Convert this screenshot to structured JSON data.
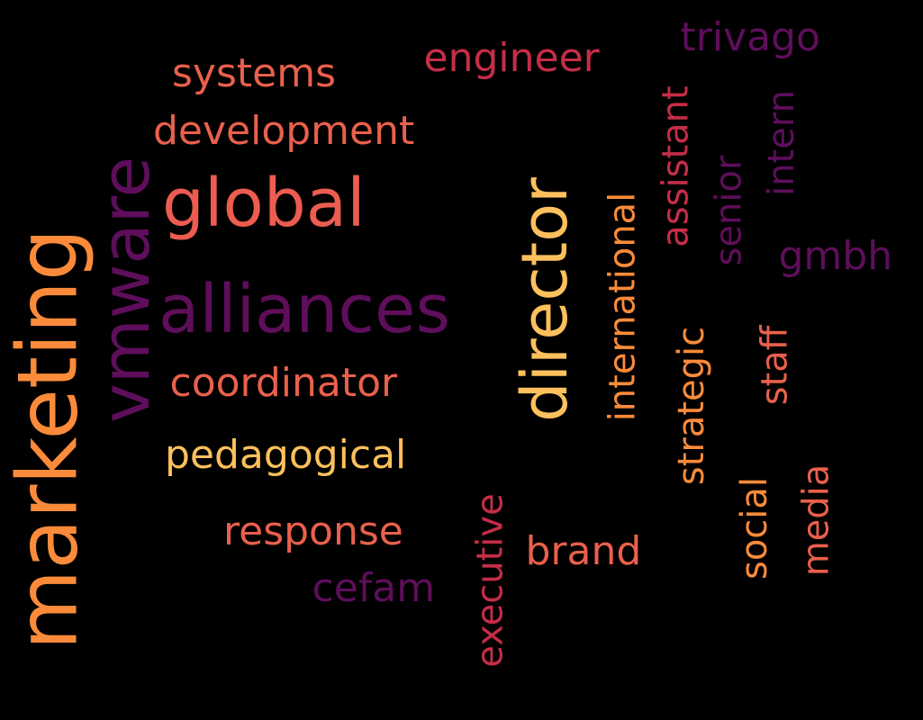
{
  "words": [
    {
      "text": "marketing",
      "color": "#fb8b3a",
      "rotated": true
    },
    {
      "text": "vmware",
      "color": "#5e0e5a",
      "rotated": true
    },
    {
      "text": "director",
      "color": "#fdc05c",
      "rotated": true
    },
    {
      "text": "global",
      "color": "#ec5c50",
      "rotated": false
    },
    {
      "text": "alliances",
      "color": "#5e0e5a",
      "rotated": false
    },
    {
      "text": "coordinator",
      "color": "#e9604c",
      "rotated": false
    },
    {
      "text": "pedagogical",
      "color": "#fdc05c",
      "rotated": false
    },
    {
      "text": "response",
      "color": "#e9604c",
      "rotated": false
    },
    {
      "text": "development",
      "color": "#e9604c",
      "rotated": false
    },
    {
      "text": "systems",
      "color": "#e9604c",
      "rotated": false
    },
    {
      "text": "engineer",
      "color": "#c62d47",
      "rotated": false
    },
    {
      "text": "trivago",
      "color": "#5e0e5a",
      "rotated": false
    },
    {
      "text": "brand",
      "color": "#e9604c",
      "rotated": false
    },
    {
      "text": "cefam",
      "color": "#5e0e5a",
      "rotated": false
    },
    {
      "text": "executive",
      "color": "#c62d47",
      "rotated": true
    },
    {
      "text": "international",
      "color": "#fb8b3a",
      "rotated": true
    },
    {
      "text": "assistant",
      "color": "#c62d47",
      "rotated": true
    },
    {
      "text": "senior",
      "color": "#5e0e5a",
      "rotated": true
    },
    {
      "text": "intern",
      "color": "#5e0e5a",
      "rotated": true
    },
    {
      "text": "gmbh",
      "color": "#5e0e5a",
      "rotated": false
    },
    {
      "text": "strategic",
      "color": "#fb8b3a",
      "rotated": true
    },
    {
      "text": "staff",
      "color": "#e9604c",
      "rotated": true
    },
    {
      "text": "social",
      "color": "#fb8b3a",
      "rotated": true
    },
    {
      "text": "media",
      "color": "#e9604c",
      "rotated": true
    }
  ]
}
